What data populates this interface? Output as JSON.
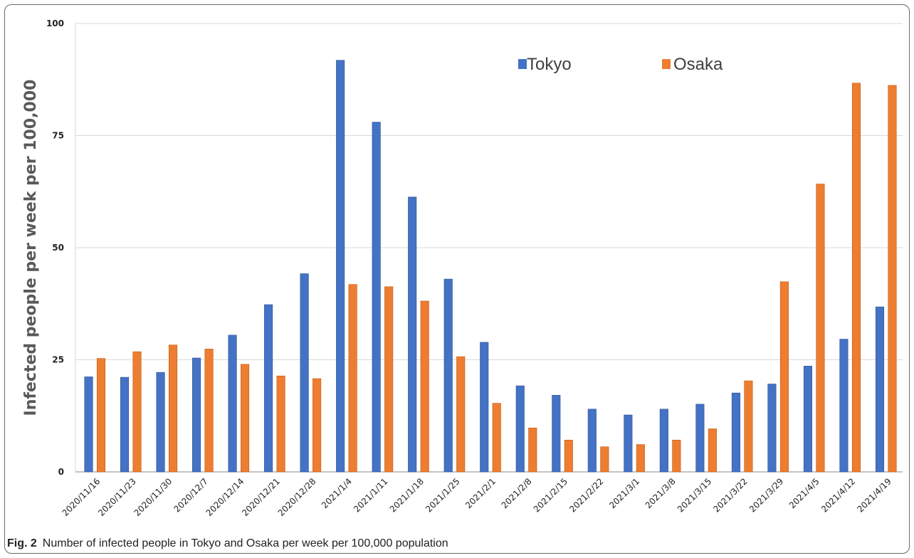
{
  "chart_data": {
    "type": "bar",
    "categories": [
      "2020/11/16",
      "2020/11/23",
      "2020/11/30",
      "2020/12/7",
      "2020/12/14",
      "2020/12/21",
      "2020/12/28",
      "2021/1/4",
      "2021/1/11",
      "2021/1/18",
      "2021/1/25",
      "2021/2/1",
      "2021/2/8",
      "2021/2/15",
      "2021/2/22",
      "2021/3/1",
      "2021/3/8",
      "2021/3/15",
      "2021/3/22",
      "2021/3/29",
      "2021/4/5",
      "2021/4/12",
      "2021/4/19"
    ],
    "series": [
      {
        "name": "Tokyo",
        "color": "#4472c4",
        "values": [
          21.2,
          21.1,
          22.2,
          25.4,
          30.5,
          37.3,
          44.2,
          91.8,
          78.0,
          61.3,
          43.0,
          28.9,
          19.2,
          17.1,
          14.0,
          12.7,
          14.0,
          15.1,
          17.6,
          19.6,
          23.6,
          29.6,
          36.8
        ]
      },
      {
        "name": "Osaka",
        "color": "#ed7d31",
        "values": [
          25.3,
          26.8,
          28.3,
          27.4,
          24.0,
          21.4,
          20.8,
          41.8,
          41.3,
          38.1,
          25.7,
          15.3,
          9.8,
          7.1,
          5.6,
          6.1,
          7.1,
          9.6,
          20.3,
          42.4,
          64.2,
          86.7,
          86.2
        ]
      }
    ],
    "yticks": [
      "0",
      "25",
      "50",
      "75",
      "100"
    ],
    "ylim": [
      0,
      100
    ],
    "ylabel": "Infected people per week per 100,000",
    "xlabel": "",
    "grid": true,
    "legend_position": "top-right"
  },
  "caption": {
    "label": "Fig. 2",
    "text": "Number of infected people in Tokyo and Osaka per week per 100,000 population"
  }
}
